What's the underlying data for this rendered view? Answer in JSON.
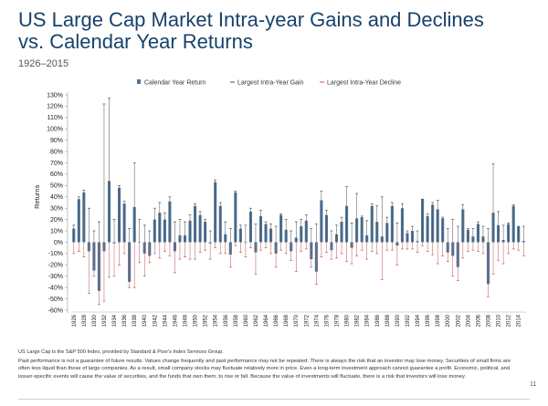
{
  "page": {
    "title_line1": "US Large Cap Market Intra-year Gains and Declines",
    "title_line2": "vs. Calendar Year Returns",
    "subtitle": "1926–2015",
    "source": "US Large Cap is the S&P 500 Index, provided by Standard & Poor's Index Services Group.",
    "disclaimer": "Past performance is not a guarantee of future results. Values change frequently and past performance may not be repeated. There is always the risk that an investor may lose money. Securities of small firms are often less liquid than those of large companies. As a result, small company stocks may fluctuate relatively more in price. Even a long-term investment approach cannot guarantee a profit. Economic, political, and issuer-specific events will cause the value of securities, and the funds that own them, to rise or fall. Because the value of investments will fluctuate, there is a risk that investors will lose money.",
    "page_number": "11"
  },
  "colors": {
    "title": "#17426b",
    "bar": "#4d7497",
    "gain": "#4a4a4a",
    "decline": "#c0504d",
    "axis": "#9a9a9a"
  },
  "chart_data": {
    "type": "bar",
    "title": "US Large Cap Market Intra-year Gains and Declines vs. Calendar Year Returns",
    "subtitle": "1926–2015",
    "ylabel": "Returns",
    "xlabel": "",
    "ylim": [
      -60,
      130
    ],
    "yticks": [
      130,
      120,
      110,
      100,
      90,
      80,
      70,
      60,
      50,
      40,
      30,
      20,
      10,
      0,
      -10,
      -20,
      -30,
      -40,
      -50,
      -60
    ],
    "legend": [
      "Calendar Year Return",
      "Largest Intra-Year Gain",
      "Largest Intra-Year Decline"
    ],
    "legend_position": "top",
    "xtick_labels": [
      "1926",
      "1928",
      "1930",
      "1932",
      "1934",
      "1936",
      "1938",
      "1940",
      "1942",
      "1944",
      "1946",
      "1948",
      "1950",
      "1952",
      "1954",
      "1956",
      "1958",
      "1960",
      "1962",
      "1964",
      "1966",
      "1968",
      "1970",
      "1972",
      "1974",
      "1976",
      "1978",
      "1980",
      "1982",
      "1984",
      "1986",
      "1988",
      "1990",
      "1992",
      "1994",
      "1996",
      "1998",
      "2000",
      "2002",
      "2004",
      "2006",
      "2008",
      "2010",
      "2012",
      "2014"
    ],
    "years": [
      1926,
      1927,
      1928,
      1929,
      1930,
      1931,
      1932,
      1933,
      1934,
      1935,
      1936,
      1937,
      1938,
      1939,
      1940,
      1941,
      1942,
      1943,
      1944,
      1945,
      1946,
      1947,
      1948,
      1949,
      1950,
      1951,
      1952,
      1953,
      1954,
      1955,
      1956,
      1957,
      1958,
      1959,
      1960,
      1961,
      1962,
      1963,
      1964,
      1965,
      1966,
      1967,
      1968,
      1969,
      1970,
      1971,
      1972,
      1973,
      1974,
      1975,
      1976,
      1977,
      1978,
      1979,
      1980,
      1981,
      1982,
      1983,
      1984,
      1985,
      1986,
      1987,
      1988,
      1989,
      1990,
      1991,
      1992,
      1993,
      1994,
      1995,
      1996,
      1997,
      1998,
      1999,
      2000,
      2001,
      2002,
      2003,
      2004,
      2005,
      2006,
      2007,
      2008,
      2009,
      2010,
      2011,
      2012,
      2013,
      2014,
      2015
    ],
    "series": [
      {
        "name": "Calendar Year Return",
        "values": [
          12,
          38,
          44,
          -8,
          -25,
          -43,
          -8,
          54,
          -1,
          48,
          34,
          -35,
          31,
          0,
          -10,
          -12,
          20,
          26,
          20,
          36,
          -8,
          6,
          6,
          19,
          32,
          24,
          18,
          -1,
          53,
          32,
          7,
          -11,
          44,
          12,
          0,
          27,
          -9,
          23,
          16,
          12,
          -10,
          24,
          11,
          -8,
          4,
          14,
          19,
          -15,
          -26,
          37,
          24,
          -7,
          7,
          18,
          32,
          -5,
          21,
          22,
          6,
          32,
          18,
          5,
          17,
          32,
          -3,
          30,
          8,
          10,
          1,
          38,
          23,
          33,
          29,
          21,
          -9,
          -12,
          -22,
          29,
          11,
          5,
          16,
          5,
          -37,
          26,
          15,
          2,
          16,
          32,
          14,
          1
        ]
      },
      {
        "name": "Largest Intra-Year Gain",
        "values": [
          15,
          40,
          46,
          30,
          10,
          18,
          122,
          127,
          20,
          50,
          36,
          12,
          70,
          20,
          15,
          10,
          30,
          35,
          26,
          40,
          18,
          20,
          18,
          24,
          34,
          27,
          20,
          10,
          55,
          35,
          18,
          12,
          45,
          15,
          15,
          30,
          16,
          28,
          18,
          16,
          14,
          25,
          20,
          10,
          18,
          20,
          24,
          12,
          16,
          45,
          28,
          10,
          15,
          22,
          49,
          17,
          43,
          23,
          19,
          34,
          32,
          40,
          22,
          35,
          17,
          34,
          10,
          14,
          10,
          38,
          25,
          35,
          37,
          22,
          12,
          20,
          14,
          33,
          12,
          12,
          18,
          14,
          12,
          69,
          27,
          15,
          17,
          33,
          14,
          14
        ]
      },
      {
        "name": "Largest Intra-Year Decline",
        "values": [
          -10,
          -8,
          -13,
          -45,
          -30,
          -55,
          -52,
          -31,
          -30,
          -20,
          -10,
          -40,
          -40,
          -18,
          -30,
          -18,
          -10,
          -14,
          -8,
          -12,
          -27,
          -15,
          -13,
          -15,
          -15,
          -9,
          -7,
          -15,
          -5,
          -10,
          -10,
          -22,
          -3,
          -9,
          -13,
          -5,
          -28,
          -7,
          -5,
          -10,
          -22,
          -7,
          -10,
          -16,
          -26,
          -8,
          -6,
          -22,
          -37,
          -13,
          -9,
          -15,
          -14,
          -10,
          -17,
          -19,
          -12,
          -7,
          -15,
          -8,
          -10,
          -33,
          -7,
          -7,
          -20,
          -6,
          -6,
          -6,
          -9,
          -3,
          -8,
          -11,
          -19,
          -12,
          -17,
          -30,
          -34,
          -14,
          -8,
          -7,
          -8,
          -10,
          -48,
          -28,
          -16,
          -19,
          -10,
          -6,
          -7,
          -12
        ]
      }
    ]
  }
}
